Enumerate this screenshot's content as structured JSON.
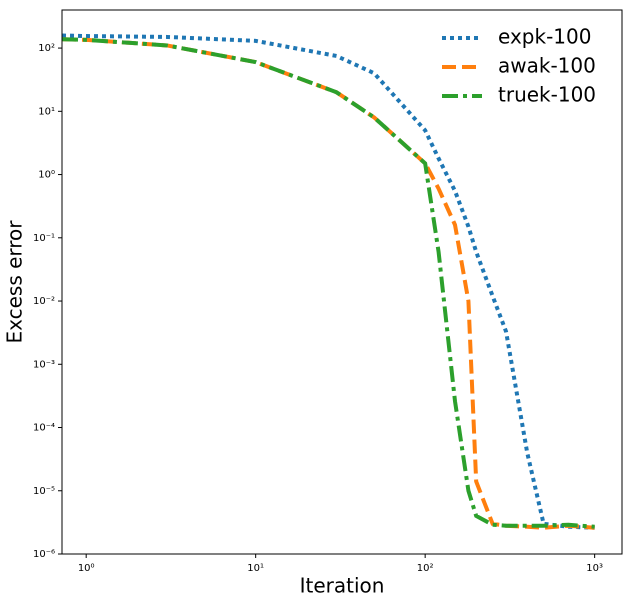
{
  "chart_data": {
    "type": "line",
    "xlabel": "Iteration",
    "ylabel": "Excess error",
    "xscale": "log",
    "yscale": "log",
    "x": [
      0.72,
      1,
      3,
      10,
      30,
      50,
      100,
      120,
      150,
      180,
      200,
      250,
      300,
      400,
      500,
      700,
      1000
    ],
    "series": [
      {
        "name": "expk-100",
        "color": "#1f77b4",
        "linestyle": "dotted",
        "values": [
          158,
          155,
          150,
          130,
          75,
          40,
          5,
          1.8,
          0.55,
          0.15,
          0.06,
          0.012,
          0.0033,
          4e-05,
          3e-06,
          2.7e-06,
          2.6e-06
        ]
      },
      {
        "name": "awak-100",
        "color": "#ff7f0e",
        "linestyle": "dashed",
        "values": [
          138,
          135,
          110,
          60,
          20,
          8,
          1.5,
          0.6,
          0.16,
          0.01,
          1.4e-05,
          3e-06,
          2.8e-06,
          2.7e-06,
          2.6e-06,
          2.8e-06,
          2.6e-06
        ]
      },
      {
        "name": "truek-100",
        "color": "#2ca02c",
        "linestyle": "dashdot",
        "values": [
          138,
          135,
          110,
          60,
          20,
          8,
          1.5,
          0.06,
          0.00026,
          1e-05,
          4e-06,
          2.9e-06,
          2.8e-06,
          2.8e-06,
          2.8e-06,
          2.9e-06,
          2.7e-06
        ]
      }
    ],
    "xlim": [
      0.72,
      1450
    ],
    "ylim": [
      1e-06,
      400
    ],
    "xticks": [
      {
        "value": 1,
        "label": "10⁰"
      },
      {
        "value": 10,
        "label": "10¹"
      },
      {
        "value": 100,
        "label": "10²"
      },
      {
        "value": 1000,
        "label": "10³"
      }
    ],
    "yticks": [
      {
        "value": 1e-06,
        "label": "10⁻⁶"
      },
      {
        "value": 1e-05,
        "label": "10⁻⁵"
      },
      {
        "value": 0.0001,
        "label": "10⁻⁴"
      },
      {
        "value": 0.001,
        "label": "10⁻³"
      },
      {
        "value": 0.01,
        "label": "10⁻²"
      },
      {
        "value": 0.1,
        "label": "10⁻¹"
      },
      {
        "value": 1,
        "label": "10⁰"
      },
      {
        "value": 10,
        "label": "10¹"
      },
      {
        "value": 100,
        "label": "10²"
      }
    ],
    "legend": "upper right"
  }
}
